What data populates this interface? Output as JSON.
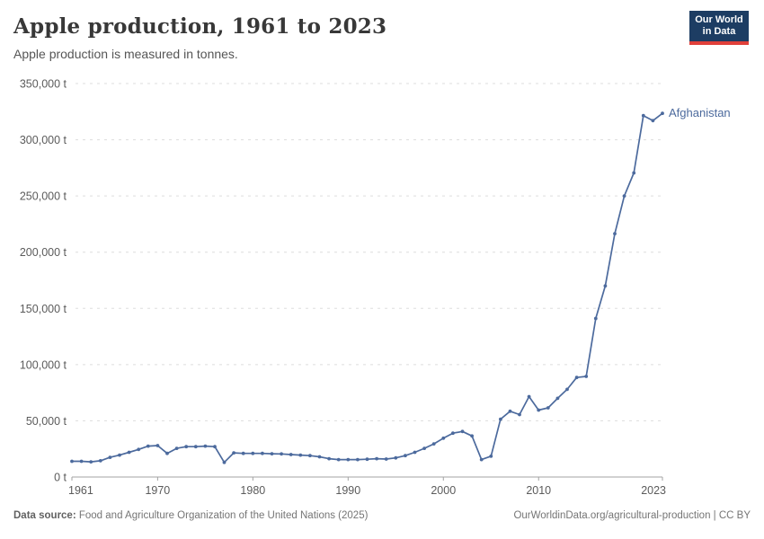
{
  "header": {
    "title": "Apple production, 1961 to 2023",
    "subtitle": "Apple production is measured in tonnes."
  },
  "logo": {
    "line1": "Our World",
    "line2": "in Data"
  },
  "colors": {
    "line": "#4c6a9d",
    "grid": "#dddddd",
    "axis": "#a3a3a3",
    "tick_text": "#5b5b5b",
    "logo_bg": "#1d3d63",
    "logo_bar": "#e0403a"
  },
  "chart_data": {
    "type": "line",
    "title": "Apple production, 1961 to 2023",
    "subtitle": "Apple production is measured in tonnes.",
    "xlabel": "",
    "ylabel": "",
    "unit": "t",
    "grid": "horizontal-dashed",
    "legend_position": "end-of-line-label",
    "xlim": [
      1961,
      2023
    ],
    "ylim": [
      0,
      350000
    ],
    "xticks": [
      {
        "v": 1961,
        "label": "1961"
      },
      {
        "v": 1970,
        "label": "1970"
      },
      {
        "v": 1980,
        "label": "1980"
      },
      {
        "v": 1990,
        "label": "1990"
      },
      {
        "v": 2000,
        "label": "2000"
      },
      {
        "v": 2010,
        "label": "2010"
      },
      {
        "v": 2023,
        "label": "2023"
      }
    ],
    "yticks": [
      {
        "v": 0,
        "label": "0 t"
      },
      {
        "v": 50000,
        "label": "50,000 t"
      },
      {
        "v": 100000,
        "label": "100,000 t"
      },
      {
        "v": 150000,
        "label": "150,000 t"
      },
      {
        "v": 200000,
        "label": "200,000 t"
      },
      {
        "v": 250000,
        "label": "250,000 t"
      },
      {
        "v": 300000,
        "label": "300,000 t"
      },
      {
        "v": 350000,
        "label": "350,000 t"
      }
    ],
    "series": [
      {
        "name": "Afghanistan",
        "color": "#4c6a9d",
        "x": [
          1961,
          1962,
          1963,
          1964,
          1965,
          1966,
          1967,
          1968,
          1969,
          1970,
          1971,
          1972,
          1973,
          1974,
          1975,
          1976,
          1977,
          1978,
          1979,
          1980,
          1981,
          1982,
          1983,
          1984,
          1985,
          1986,
          1987,
          1988,
          1989,
          1990,
          1991,
          1992,
          1993,
          1994,
          1995,
          1996,
          1997,
          1998,
          1999,
          2000,
          2001,
          2002,
          2003,
          2004,
          2005,
          2006,
          2007,
          2008,
          2009,
          2010,
          2011,
          2012,
          2013,
          2014,
          2015,
          2016,
          2017,
          2018,
          2019,
          2020,
          2021,
          2022,
          2023
        ],
        "values": [
          14000,
          14000,
          13500,
          14500,
          17500,
          19500,
          22000,
          24500,
          27500,
          28000,
          21000,
          25500,
          27000,
          27000,
          27500,
          27000,
          13000,
          21500,
          21000,
          21000,
          21000,
          20700,
          20500,
          20000,
          19500,
          19000,
          18000,
          16300,
          15500,
          15500,
          15500,
          15800,
          16300,
          16000,
          17000,
          19000,
          22000,
          25500,
          29500,
          34500,
          39000,
          40500,
          36500,
          15500,
          18500,
          51500,
          58500,
          55500,
          71500,
          59500,
          61500,
          70000,
          78000,
          88500,
          89500,
          141000,
          170000,
          216500,
          250000,
          270500,
          321500,
          317000,
          323500
        ]
      }
    ]
  },
  "footer": {
    "source_label": "Data source:",
    "source_text": " Food and Agriculture Organization of the United Nations (2025)",
    "credit": "OurWorldinData.org/agricultural-production | CC BY"
  }
}
